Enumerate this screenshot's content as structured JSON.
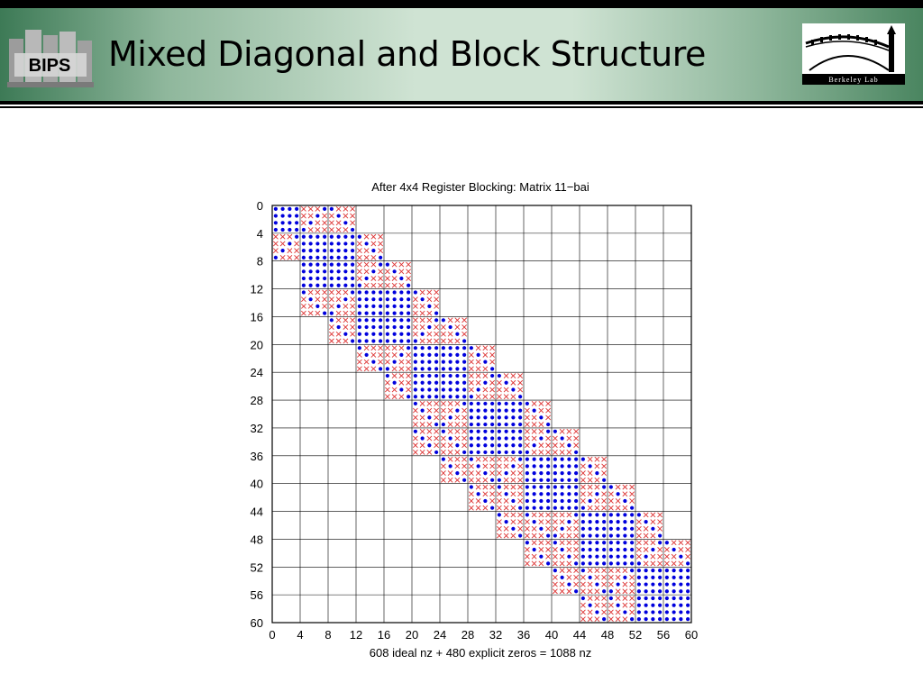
{
  "slide": {
    "title": "Mixed Diagonal and Block Structure",
    "logo_left_text": "BIPS",
    "logo_right_text": "Berkeley Lab"
  },
  "chart_data": {
    "type": "scatter",
    "title": "After 4x4 Register Blocking: Matrix 11−bai",
    "xlabel": "608 ideal nz + 480 explicit zeros = 1088 nz",
    "ylabel": "",
    "xlim": [
      0,
      60
    ],
    "ylim": [
      60,
      0
    ],
    "y_inverted": true,
    "block_size": 4,
    "grid": true,
    "xticks": [
      0,
      4,
      8,
      12,
      16,
      20,
      24,
      28,
      32,
      36,
      40,
      44,
      48,
      52,
      56,
      60
    ],
    "yticks": [
      0,
      4,
      8,
      12,
      16,
      20,
      24,
      28,
      32,
      36,
      40,
      44,
      48,
      52,
      56,
      60
    ],
    "series": [
      {
        "marker": "dot",
        "color": "#0000dd",
        "meaning": "ideal nz"
      },
      {
        "marker": "x",
        "color": "#dd3333",
        "meaning": "explicit zeros"
      }
    ],
    "block_rows": [
      {
        "row": 0,
        "cols": [
          0,
          1,
          2
        ]
      },
      {
        "row": 1,
        "cols": [
          0,
          1,
          2,
          3
        ]
      },
      {
        "row": 2,
        "cols": [
          1,
          2,
          3,
          4
        ]
      },
      {
        "row": 3,
        "cols": [
          1,
          2,
          3,
          4,
          5
        ]
      },
      {
        "row": 4,
        "cols": [
          2,
          3,
          4,
          5,
          6
        ]
      },
      {
        "row": 5,
        "cols": [
          3,
          4,
          5,
          6,
          7
        ]
      },
      {
        "row": 6,
        "cols": [
          4,
          5,
          6,
          7,
          8
        ]
      },
      {
        "row": 7,
        "cols": [
          5,
          6,
          7,
          8,
          9
        ]
      },
      {
        "row": 8,
        "cols": [
          5,
          6,
          7,
          8,
          9,
          10
        ]
      },
      {
        "row": 9,
        "cols": [
          6,
          7,
          8,
          9,
          10,
          11
        ]
      },
      {
        "row": 10,
        "cols": [
          7,
          8,
          9,
          10,
          11,
          12
        ]
      },
      {
        "row": 11,
        "cols": [
          8,
          9,
          10,
          11,
          12,
          13
        ]
      },
      {
        "row": 12,
        "cols": [
          9,
          10,
          11,
          12,
          13,
          14
        ]
      },
      {
        "row": 13,
        "cols": [
          10,
          11,
          12,
          13,
          14
        ]
      },
      {
        "row": 14,
        "cols": [
          11,
          12,
          13,
          14
        ]
      }
    ],
    "block_patterns": {
      "full": [
        "1111",
        "1111",
        "1111",
        "1111"
      ],
      "diag": [
        "1000",
        "0100",
        "0010",
        "0001"
      ],
      "anti": [
        "0001",
        "0010",
        "0100",
        "1000"
      ],
      "diag_upper": [
        "0100",
        "0010",
        "0001",
        "0000"
      ],
      "diag_lower": [
        "0000",
        "1000",
        "0100",
        "0010"
      ]
    },
    "block_pattern_rule": "If |row - col| >= 2 use 'diag' (red pattern), if |row - col| == 1 alternate between 'anti' and 'full', if row == col use 'full'"
  }
}
